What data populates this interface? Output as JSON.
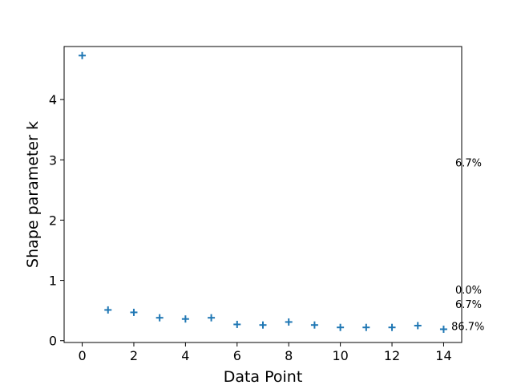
{
  "chart_data": {
    "type": "scatter",
    "xlabel": "Data Point",
    "ylabel": "Shape parameter k",
    "xlim": [
      -0.7,
      14.7
    ],
    "ylim": [
      -0.03,
      4.88
    ],
    "xticks": [
      0,
      2,
      4,
      6,
      8,
      10,
      12,
      14
    ],
    "yticks": [
      0,
      1,
      2,
      3,
      4
    ],
    "grid": false,
    "marker": "+",
    "color": "#1f77b4",
    "series": [
      {
        "x": [
          0,
          1,
          2,
          3,
          4,
          5,
          6,
          7,
          8,
          9,
          10,
          11,
          12,
          13,
          14
        ],
        "y": [
          4.73,
          0.51,
          0.47,
          0.38,
          0.36,
          0.38,
          0.27,
          0.26,
          0.31,
          0.26,
          0.22,
          0.22,
          0.22,
          0.25,
          0.19
        ]
      }
    ],
    "annotations": [
      {
        "text": "6.7%",
        "x": 14.45,
        "y": 2.96
      },
      {
        "text": "0.0%",
        "x": 14.45,
        "y": 0.85
      },
      {
        "text": "6.7%",
        "x": 14.45,
        "y": 0.61
      },
      {
        "text": "86.7%",
        "x": 14.3,
        "y": 0.24
      }
    ]
  }
}
